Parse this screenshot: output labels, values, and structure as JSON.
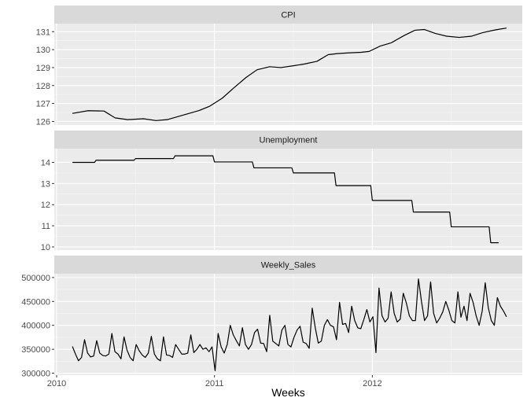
{
  "chart_data": {
    "type": "line",
    "xlabel": "Weeks",
    "x_ticks": [
      {
        "label": "2010",
        "year": 2010.0
      },
      {
        "label": "2011",
        "year": 2011.0
      },
      {
        "label": "2012",
        "year": 2012.0
      }
    ],
    "x_range": [
      2009.985,
      2012.95
    ],
    "grid": true,
    "colors": {
      "panel_bg": "#ebebeb",
      "strip_bg": "#d9d9d9",
      "grid_major": "#ffffff",
      "line": "#000000"
    },
    "facets": [
      {
        "title": "CPI",
        "ylim": [
          125.8,
          131.45
        ],
        "y_ticks": [
          {
            "label": "126",
            "value": 126
          },
          {
            "label": "127",
            "value": 127
          },
          {
            "label": "128",
            "value": 128
          },
          {
            "label": "129",
            "value": 129
          },
          {
            "label": "130",
            "value": 130
          },
          {
            "label": "131",
            "value": 131
          }
        ],
        "series": {
          "x": [
            2010.1,
            2010.2,
            2010.3,
            2010.37,
            2010.45,
            2010.55,
            2010.63,
            2010.7,
            2010.8,
            2010.9,
            2010.97,
            2011.05,
            2011.12,
            2011.2,
            2011.27,
            2011.35,
            2011.42,
            2011.5,
            2011.57,
            2011.65,
            2011.72,
            2011.78,
            2011.85,
            2011.93,
            2011.98,
            2012.05,
            2012.12,
            2012.2,
            2012.27,
            2012.33,
            2012.4,
            2012.47,
            2012.55,
            2012.63,
            2012.7,
            2012.78,
            2012.85
          ],
          "y": [
            126.45,
            126.6,
            126.58,
            126.2,
            126.1,
            126.15,
            126.05,
            126.1,
            126.35,
            126.6,
            126.85,
            127.3,
            127.85,
            128.45,
            128.88,
            129.05,
            129.0,
            129.1,
            129.2,
            129.35,
            129.72,
            129.78,
            129.82,
            129.85,
            129.9,
            130.2,
            130.38,
            130.78,
            131.08,
            131.12,
            130.9,
            130.75,
            130.68,
            130.75,
            130.95,
            131.1,
            131.2
          ]
        }
      },
      {
        "title": "Unemployment",
        "ylim": [
          9.85,
          14.65
        ],
        "y_ticks": [
          {
            "label": "10",
            "value": 10
          },
          {
            "label": "11",
            "value": 11
          },
          {
            "label": "12",
            "value": 12
          },
          {
            "label": "13",
            "value": 13
          },
          {
            "label": "14",
            "value": 14
          }
        ],
        "series": {
          "x": [
            2010.1,
            2010.24,
            2010.25,
            2010.49,
            2010.5,
            2010.74,
            2010.75,
            2010.99,
            2011.0,
            2011.24,
            2011.25,
            2011.49,
            2011.5,
            2011.76,
            2011.77,
            2011.99,
            2012.0,
            2012.25,
            2012.26,
            2012.49,
            2012.5,
            2012.74,
            2012.75,
            2012.8
          ],
          "y": [
            14.0,
            14.0,
            14.1,
            14.1,
            14.18,
            14.18,
            14.31,
            14.31,
            14.02,
            14.02,
            13.74,
            13.74,
            13.5,
            13.5,
            12.9,
            12.9,
            12.2,
            12.2,
            11.65,
            11.65,
            10.95,
            10.95,
            10.2,
            10.2
          ]
        }
      },
      {
        "title": "Weekly_Sales",
        "ylim": [
          296000,
          508000
        ],
        "y_ticks": [
          {
            "label": "300000",
            "value": 300000
          },
          {
            "label": "350000",
            "value": 350000
          },
          {
            "label": "400000",
            "value": 400000
          },
          {
            "label": "450000",
            "value": 450000
          },
          {
            "label": "500000",
            "value": 500000
          }
        ],
        "series": {
          "x_start": 2010.1,
          "x_step": 0.01923,
          "y": [
            356000,
            340000,
            326000,
            333000,
            370000,
            342000,
            334000,
            336000,
            368000,
            342000,
            337000,
            336000,
            340000,
            383000,
            345000,
            340000,
            330000,
            376000,
            348000,
            333000,
            326000,
            360000,
            347000,
            338000,
            333000,
            342000,
            377000,
            340000,
            330000,
            326000,
            376000,
            338000,
            337000,
            333000,
            360000,
            350000,
            340000,
            340000,
            342000,
            380000,
            343000,
            350000,
            360000,
            350000,
            353000,
            345000,
            355000,
            305000,
            383000,
            355000,
            342000,
            360000,
            400000,
            380000,
            368000,
            357000,
            395000,
            360000,
            350000,
            360000,
            385000,
            392000,
            363000,
            362000,
            345000,
            421000,
            367000,
            362000,
            357000,
            390000,
            400000,
            360000,
            355000,
            375000,
            390000,
            398000,
            365000,
            362000,
            352000,
            436000,
            395000,
            363000,
            367000,
            400000,
            412000,
            400000,
            397000,
            370000,
            448000,
            402000,
            404000,
            385000,
            440000,
            410000,
            395000,
            393000,
            412000,
            433000,
            407000,
            418000,
            343000,
            478000,
            420000,
            407000,
            415000,
            470000,
            425000,
            407000,
            413000,
            467000,
            447000,
            420000,
            410000,
            410000,
            497000,
            450000,
            410000,
            420000,
            491000,
            425000,
            405000,
            415000,
            428000,
            450000,
            432000,
            410000,
            405000,
            470000,
            417000,
            440000,
            410000,
            467000,
            448000,
            420000,
            400000,
            430000,
            489000,
            437000,
            410000,
            400000,
            458000,
            440000,
            430000,
            418000
          ]
        }
      }
    ]
  }
}
